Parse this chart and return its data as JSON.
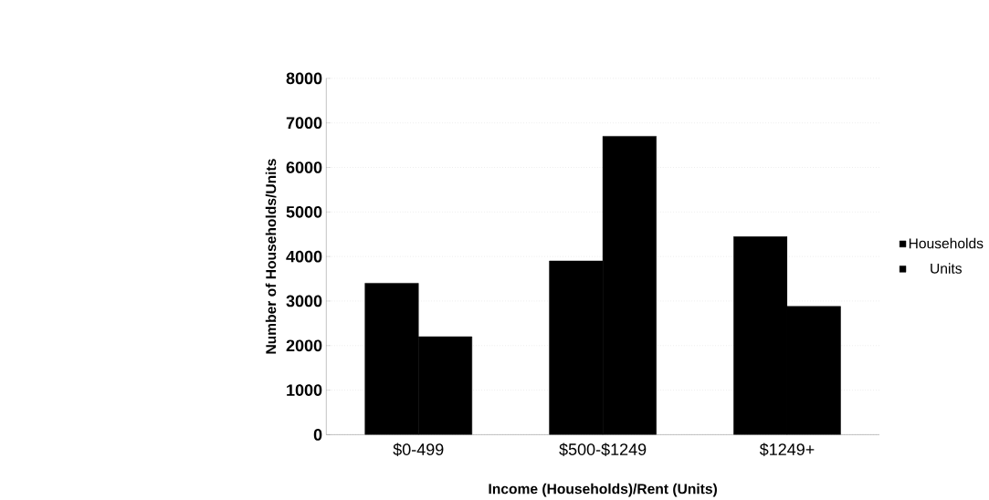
{
  "chart_data": {
    "type": "bar",
    "xlabel": "Income (Households)/Rent (Units)",
    "ylabel": "Number of Households/Units",
    "categories": [
      "$0-499",
      "$500-$1249",
      "$1249+"
    ],
    "series": [
      {
        "name": "Households",
        "color": "#000000",
        "values": [
          3400,
          3900,
          4450
        ]
      },
      {
        "name": "Units",
        "color": "#000000",
        "values": [
          2200,
          6700,
          2880
        ]
      }
    ],
    "ylim": [
      0,
      8000
    ],
    "yticks": [
      0,
      1000,
      2000,
      3000,
      4000,
      5000,
      6000,
      7000,
      8000
    ],
    "grid": "y",
    "legend": "right"
  }
}
